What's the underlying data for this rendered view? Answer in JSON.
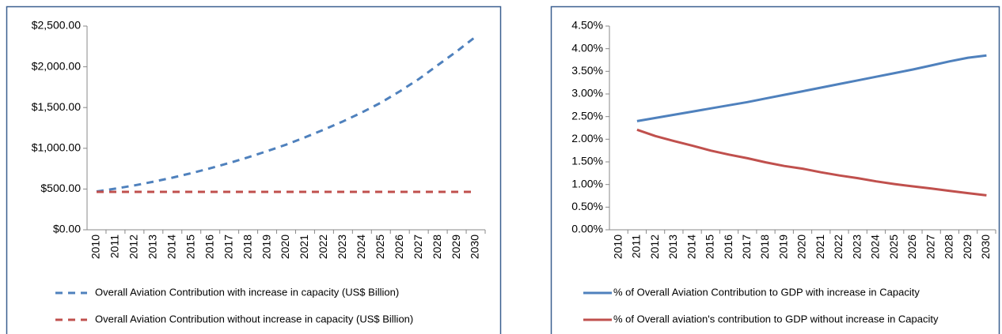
{
  "chart_data": [
    {
      "type": "line",
      "categories": [
        "2010",
        "2011",
        "2012",
        "2013",
        "2014",
        "2015",
        "2016",
        "2017",
        "2018",
        "2019",
        "2020",
        "2021",
        "2022",
        "2023",
        "2024",
        "2025",
        "2026",
        "2027",
        "2028",
        "2029",
        "2030"
      ],
      "series": [
        {
          "name": "Overall Aviation Contribution with increase in capacity (US$ Billion)",
          "color": "#4f81bd",
          "line_style": "dashed",
          "values": [
            470,
            505,
            545,
            590,
            640,
            695,
            755,
            820,
            890,
            965,
            1045,
            1135,
            1230,
            1330,
            1440,
            1560,
            1700,
            1850,
            2020,
            2190,
            2370
          ]
        },
        {
          "name": "Overall Aviation Contribution without increase in capacity (US$ Billion)",
          "color": "#c0504d",
          "line_style": "dashed",
          "values": [
            465,
            465,
            465,
            465,
            465,
            465,
            465,
            465,
            465,
            465,
            465,
            465,
            465,
            465,
            465,
            465,
            465,
            465,
            465,
            465,
            465
          ]
        }
      ],
      "ylim": [
        0,
        2500
      ],
      "yticks": [
        {
          "value": 0,
          "label": "$0.00"
        },
        {
          "value": 500,
          "label": "$500.00"
        },
        {
          "value": 1000,
          "label": "$1,000.00"
        },
        {
          "value": 1500,
          "label": "$1,500.00"
        },
        {
          "value": 2000,
          "label": "$2,000.00"
        },
        {
          "value": 2500,
          "label": "$2,500.00"
        }
      ],
      "grid": false,
      "legend": "bottom"
    },
    {
      "type": "line",
      "categories": [
        "2010",
        "2011",
        "2012",
        "2013",
        "2014",
        "2015",
        "2016",
        "2017",
        "2018",
        "2019",
        "2020",
        "2021",
        "2022",
        "2023",
        "2024",
        "2025",
        "2026",
        "2027",
        "2028",
        "2029",
        "2030"
      ],
      "series": [
        {
          "name": "% of Overall Aviation Contribution to GDP with increase in Capacity",
          "color": "#4f81bd",
          "line_style": "solid",
          "values": [
            null,
            2.4,
            2.47,
            2.54,
            2.61,
            2.68,
            2.75,
            2.82,
            2.9,
            2.98,
            3.06,
            3.14,
            3.22,
            3.3,
            3.38,
            3.46,
            3.54,
            3.63,
            3.72,
            3.8,
            3.85
          ]
        },
        {
          "name": "% of Overall aviation's contribution to GDP without increase in Capacity",
          "color": "#c0504d",
          "line_style": "solid",
          "values": [
            null,
            2.21,
            2.07,
            1.96,
            1.86,
            1.75,
            1.66,
            1.58,
            1.49,
            1.41,
            1.35,
            1.27,
            1.2,
            1.14,
            1.07,
            1.01,
            0.96,
            0.91,
            0.86,
            0.81,
            0.76
          ]
        }
      ],
      "ylim": [
        0,
        4.5
      ],
      "yticks": [
        {
          "value": 0,
          "label": "0.00%"
        },
        {
          "value": 0.5,
          "label": "0.50%"
        },
        {
          "value": 1,
          "label": "1.00%"
        },
        {
          "value": 1.5,
          "label": "1.50%"
        },
        {
          "value": 2,
          "label": "2.00%"
        },
        {
          "value": 2.5,
          "label": "2.50%"
        },
        {
          "value": 3,
          "label": "3.00%"
        },
        {
          "value": 3.5,
          "label": "3.50%"
        },
        {
          "value": 4,
          "label": "4.00%"
        },
        {
          "value": 4.5,
          "label": "4.50%"
        }
      ],
      "grid": false,
      "legend": "bottom"
    }
  ]
}
